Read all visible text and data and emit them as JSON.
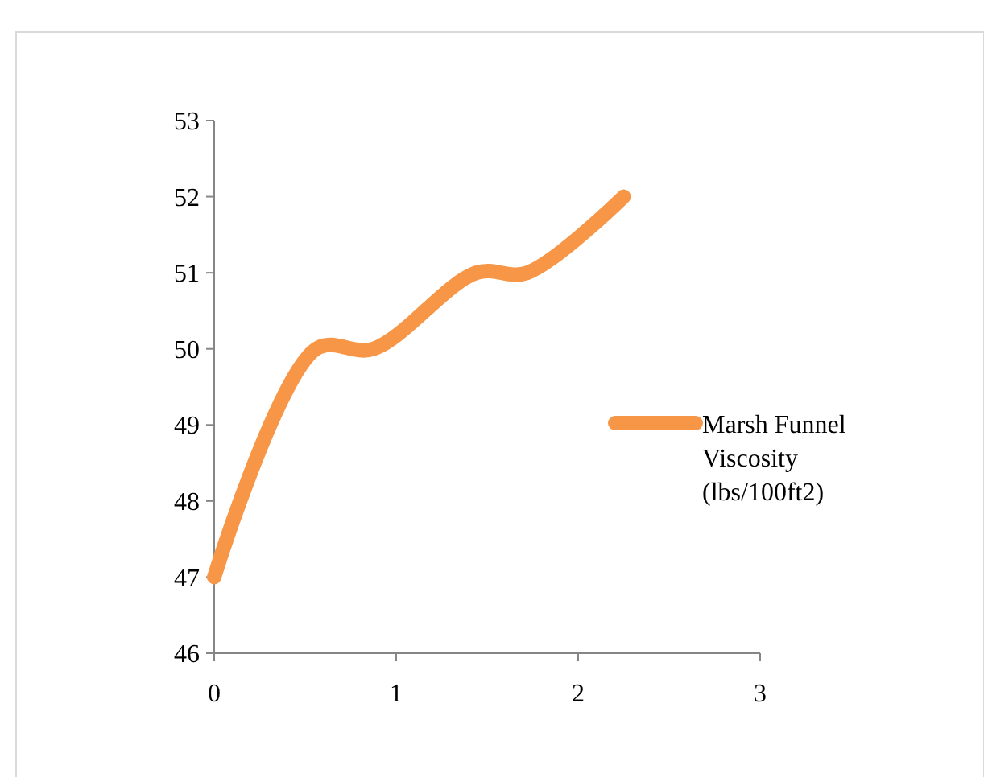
{
  "chart_data": {
    "type": "line",
    "x": [
      0,
      0.56,
      0.875,
      1.44,
      1.72,
      2.25
    ],
    "series": [
      {
        "name": "Marsh Funnel Viscosity (lbs/100ft2)",
        "color": "#f79646",
        "values": [
          47,
          50,
          50,
          51,
          51,
          52
        ]
      }
    ],
    "xlim": [
      0,
      3
    ],
    "xticks": [
      0,
      1,
      2,
      3
    ],
    "ylim": [
      46,
      53
    ],
    "yticks": [
      46,
      47,
      48,
      49,
      50,
      51,
      52,
      53
    ],
    "grid": false,
    "legend": "right",
    "marker": "none",
    "line_style": "solid"
  }
}
